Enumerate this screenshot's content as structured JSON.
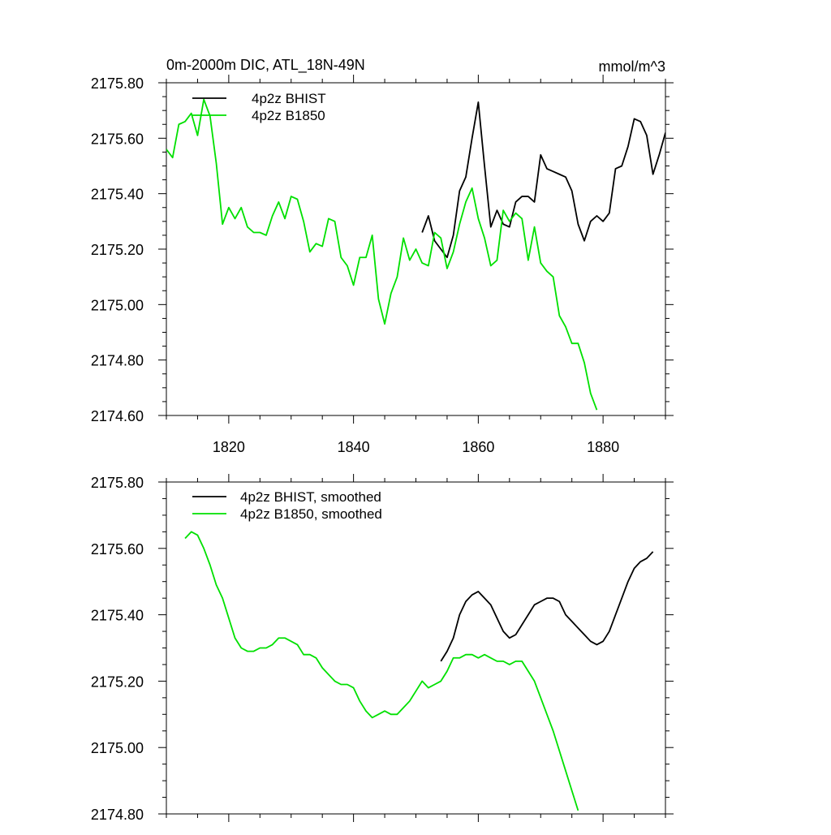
{
  "chart_data": [
    {
      "type": "line",
      "title": "0m-2000m DIC, ATL_18N-49N",
      "units": "mmol/m^3",
      "xlim": [
        1810,
        1890
      ],
      "ylim": [
        2174.6,
        2175.8
      ],
      "xticks": [
        1820,
        1840,
        1860,
        1880
      ],
      "xtick_labels": [
        "1820",
        "1840",
        "1860",
        "1880"
      ],
      "yticks": [
        2174.6,
        2174.8,
        2175.0,
        2175.2,
        2175.4,
        2175.6,
        2175.8
      ],
      "ytick_labels": [
        "2174.60",
        "2174.80",
        "2175.00",
        "2175.20",
        "2175.40",
        "2175.60",
        "2175.80"
      ],
      "legend_position": "top-left",
      "series": [
        {
          "name": "4p2z BHIST",
          "color": "#000000",
          "x_start": 1851,
          "values": [
            2175.26,
            2175.32,
            2175.23,
            2175.2,
            2175.17,
            2175.25,
            2175.41,
            2175.46,
            2175.6,
            2175.73,
            2175.5,
            2175.28,
            2175.34,
            2175.29,
            2175.28,
            2175.37,
            2175.39,
            2175.39,
            2175.37,
            2175.54,
            2175.49,
            2175.48,
            2175.47,
            2175.46,
            2175.41,
            2175.29,
            2175.23,
            2175.3,
            2175.32,
            2175.3,
            2175.33,
            2175.49,
            2175.5,
            2175.57,
            2175.67,
            2175.66,
            2175.61,
            2175.47,
            2175.54,
            2175.62
          ]
        },
        {
          "name": "4p2z B1850",
          "color": "#00e000",
          "x_start": 1810,
          "values": [
            2175.56,
            2175.53,
            2175.65,
            2175.66,
            2175.69,
            2175.61,
            2175.74,
            2175.68,
            2175.51,
            2175.29,
            2175.35,
            2175.31,
            2175.35,
            2175.28,
            2175.26,
            2175.26,
            2175.25,
            2175.32,
            2175.37,
            2175.31,
            2175.39,
            2175.38,
            2175.3,
            2175.19,
            2175.22,
            2175.21,
            2175.31,
            2175.3,
            2175.17,
            2175.14,
            2175.07,
            2175.17,
            2175.17,
            2175.25,
            2175.02,
            2174.93,
            2175.04,
            2175.1,
            2175.24,
            2175.16,
            2175.2,
            2175.15,
            2175.14,
            2175.26,
            2175.24,
            2175.13,
            2175.19,
            2175.29,
            2175.37,
            2175.42,
            2175.31,
            2175.24,
            2175.14,
            2175.16,
            2175.34,
            2175.3,
            2175.33,
            2175.31,
            2175.16,
            2175.28,
            2175.15,
            2175.12,
            2175.1,
            2174.96,
            2174.92,
            2174.86,
            2174.86,
            2174.79,
            2174.68,
            2174.62
          ]
        }
      ]
    },
    {
      "type": "line",
      "title": "",
      "xlim": [
        1810,
        1890
      ],
      "ylim": [
        2174.8,
        2175.8
      ],
      "xticks": [
        1820,
        1840,
        1860,
        1880
      ],
      "xtick_labels": [],
      "yticks": [
        2174.8,
        2175.0,
        2175.2,
        2175.4,
        2175.6,
        2175.8
      ],
      "ytick_labels": [
        "2174.80",
        "2175.00",
        "2175.20",
        "2175.40",
        "2175.60",
        "2175.80"
      ],
      "legend_position": "top-left",
      "series": [
        {
          "name": "4p2z BHIST, smoothed",
          "color": "#000000",
          "x_start": 1854,
          "values": [
            2175.26,
            2175.29,
            2175.33,
            2175.4,
            2175.44,
            2175.46,
            2175.47,
            2175.45,
            2175.43,
            2175.39,
            2175.35,
            2175.33,
            2175.34,
            2175.37,
            2175.4,
            2175.43,
            2175.44,
            2175.45,
            2175.45,
            2175.44,
            2175.4,
            2175.38,
            2175.36,
            2175.34,
            2175.32,
            2175.31,
            2175.32,
            2175.35,
            2175.4,
            2175.45,
            2175.5,
            2175.54,
            2175.56,
            2175.57,
            2175.59
          ]
        },
        {
          "name": "4p2z B1850, smoothed",
          "color": "#00e000",
          "x_start": 1813,
          "values": [
            2175.63,
            2175.65,
            2175.64,
            2175.6,
            2175.55,
            2175.49,
            2175.45,
            2175.39,
            2175.33,
            2175.3,
            2175.29,
            2175.29,
            2175.3,
            2175.3,
            2175.31,
            2175.33,
            2175.33,
            2175.32,
            2175.31,
            2175.28,
            2175.28,
            2175.27,
            2175.24,
            2175.22,
            2175.2,
            2175.19,
            2175.19,
            2175.18,
            2175.14,
            2175.11,
            2175.09,
            2175.1,
            2175.11,
            2175.1,
            2175.1,
            2175.12,
            2175.14,
            2175.17,
            2175.2,
            2175.18,
            2175.19,
            2175.2,
            2175.23,
            2175.27,
            2175.27,
            2175.28,
            2175.28,
            2175.27,
            2175.28,
            2175.27,
            2175.26,
            2175.26,
            2175.25,
            2175.26,
            2175.26,
            2175.23,
            2175.2,
            2175.15,
            2175.1,
            2175.05,
            2174.99,
            2174.93,
            2174.87,
            2174.81
          ]
        }
      ]
    }
  ]
}
